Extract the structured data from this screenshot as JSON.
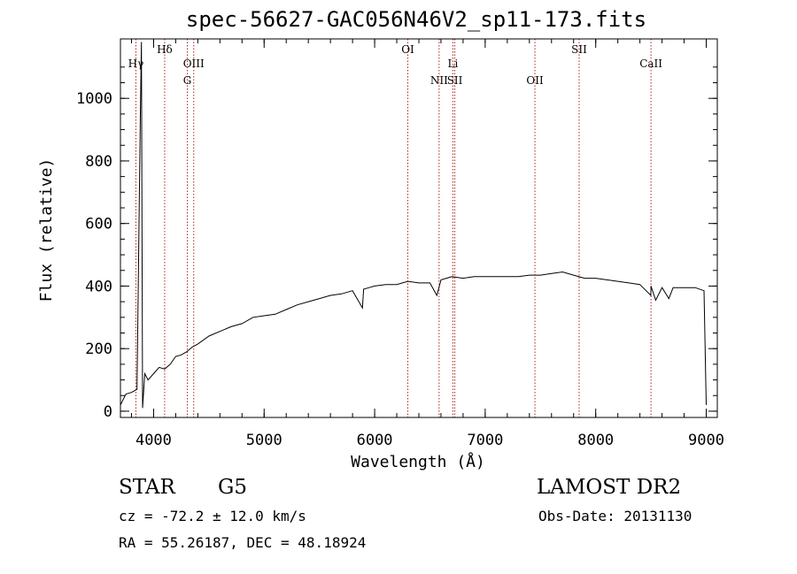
{
  "header": {
    "title": "spec-56627-GAC056N46V2_sp11-173.fits"
  },
  "info": {
    "class_label": "STAR",
    "subclass_label": "G5",
    "cz": "cz = -72.2 ± 12.0 km/s",
    "radec": "RA =  55.26187, DEC =  48.18924",
    "survey": "LAMOST DR2",
    "obs_date": "Obs-Date: 20131130"
  },
  "colors": {
    "spectrum": "#000000",
    "line_marker": "#b22222",
    "axes": "#000000"
  },
  "chart_data": {
    "type": "line",
    "title": "spec-56627-GAC056N46V2_sp11-173.fits",
    "xlabel": "Wavelength (Å)",
    "ylabel": "Flux (relative)",
    "xlim": [
      3700,
      9100
    ],
    "ylim": [
      -20,
      1190
    ],
    "xticks": [
      4000,
      5000,
      6000,
      7000,
      8000,
      9000
    ],
    "yticks": [
      0,
      200,
      400,
      600,
      800,
      1000
    ],
    "grid": false,
    "series": [
      {
        "x": [
          3700,
          3750,
          3800,
          3850,
          3880,
          3890,
          3900,
          3920,
          3950,
          4000,
          4050,
          4100,
          4150,
          4200,
          4250,
          4300,
          4350,
          4400,
          4500,
          4600,
          4700,
          4800,
          4900,
          5000,
          5100,
          5200,
          5300,
          5400,
          5500,
          5600,
          5700,
          5800,
          5890,
          5900,
          5950,
          6000,
          6100,
          6200,
          6300,
          6400,
          6500,
          6563,
          6600,
          6700,
          6800,
          6900,
          7000,
          7100,
          7200,
          7300,
          7400,
          7500,
          7600,
          7700,
          7800,
          7900,
          8000,
          8100,
          8200,
          8300,
          8400,
          8498,
          8500,
          8542,
          8600,
          8662,
          8700,
          8800,
          8900,
          8980,
          9000
        ],
        "values": [
          20,
          55,
          60,
          70,
          950,
          1180,
          10,
          120,
          100,
          120,
          140,
          135,
          150,
          175,
          180,
          190,
          205,
          215,
          240,
          255,
          270,
          280,
          300,
          305,
          310,
          325,
          340,
          350,
          360,
          370,
          375,
          385,
          330,
          390,
          395,
          400,
          405,
          405,
          415,
          410,
          410,
          370,
          420,
          430,
          425,
          430,
          430,
          430,
          430,
          430,
          435,
          435,
          440,
          445,
          435,
          425,
          425,
          420,
          415,
          410,
          405,
          370,
          400,
          355,
          395,
          360,
          395,
          395,
          395,
          385,
          20
        ]
      }
    ],
    "line_markers": [
      {
        "label": "Hγ",
        "x": 3840,
        "row": 1
      },
      {
        "label": "Hδ",
        "x": 4100,
        "row": 0
      },
      {
        "label": "OIII",
        "x": 4363,
        "row": 1
      },
      {
        "label": "G",
        "x": 4305,
        "row": 2
      },
      {
        "label": "OI",
        "x": 6300,
        "row": 0
      },
      {
        "label": "NII",
        "x": 6583,
        "row": 2
      },
      {
        "label": "Li",
        "x": 6708,
        "row": 1
      },
      {
        "label": "SII",
        "x": 6725,
        "row": 2
      },
      {
        "label": "OII",
        "x": 7450,
        "row": 2
      },
      {
        "label": "SII",
        "x": 7850,
        "row": 0
      },
      {
        "label": "CaII",
        "x": 8500,
        "row": 1
      }
    ]
  }
}
